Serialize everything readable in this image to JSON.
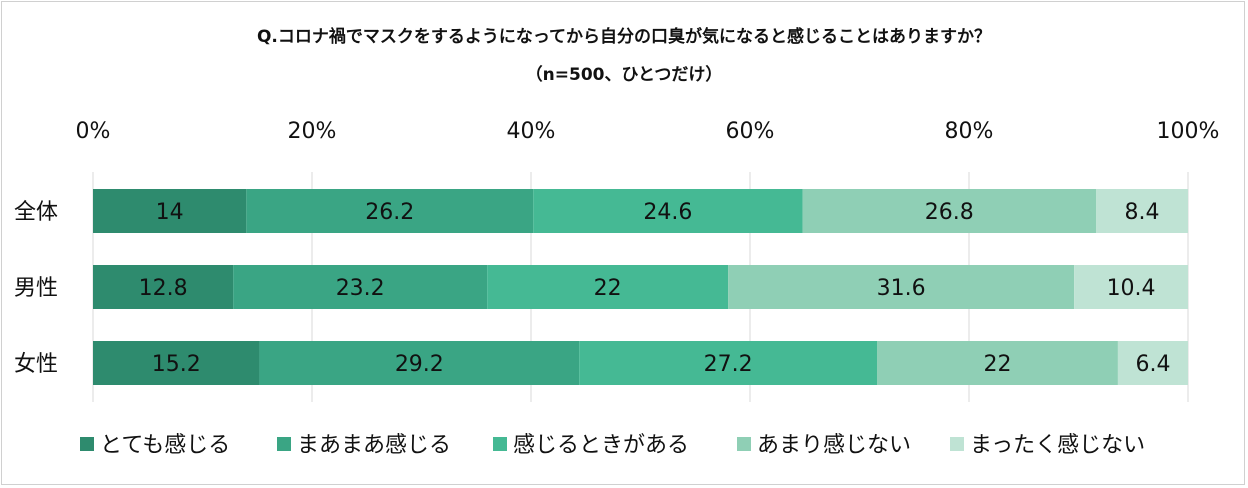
{
  "chart_data": {
    "type": "bar",
    "orientation": "horizontal-stacked-100",
    "title": "Q.コロナ禍でマスクをするようになってから自分の口臭が気になると感じることはありますか？",
    "subtitle": "（n=500、ひとつだけ）",
    "xlim": [
      0,
      100
    ],
    "x_ticks": [
      "0%",
      "20%",
      "40%",
      "60%",
      "80%",
      "100%"
    ],
    "grid": "vertical",
    "legend_position": "bottom",
    "categories": [
      "全体",
      "男性",
      "女性"
    ],
    "series": [
      {
        "name": "とても感じる",
        "color": "#2e8b6e",
        "values": [
          14,
          12.8,
          15.2
        ],
        "labels": [
          "14",
          "12.8",
          "15.2"
        ]
      },
      {
        "name": "まあまあ感じる",
        "color": "#3aa584",
        "values": [
          26.2,
          23.2,
          29.2
        ],
        "labels": [
          "26.2",
          "23.2",
          "29.2"
        ]
      },
      {
        "name": "感じるときがある",
        "color": "#45b994",
        "values": [
          24.6,
          22,
          27.2
        ],
        "labels": [
          "24.6",
          "22",
          "27.2"
        ]
      },
      {
        "name": "あまり感じない",
        "color": "#8fcfb5",
        "values": [
          26.8,
          31.6,
          22
        ],
        "labels": [
          "26.8",
          "31.6",
          "22"
        ]
      },
      {
        "name": "まったく感じない",
        "color": "#bfe3d4",
        "values": [
          8.4,
          10.4,
          6.4
        ],
        "labels": [
          "8.4",
          "10.4",
          "6.4"
        ]
      }
    ]
  }
}
